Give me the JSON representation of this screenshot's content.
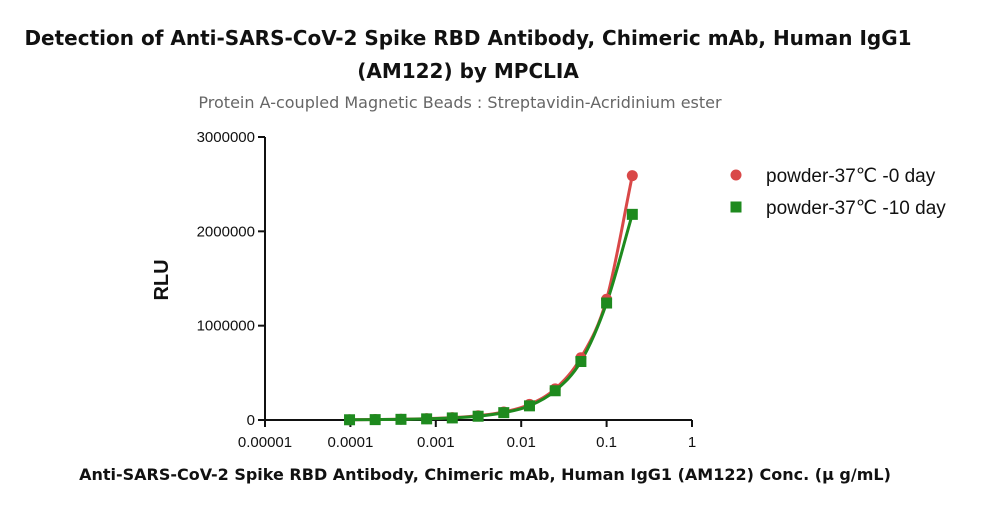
{
  "chart_data": {
    "type": "scatter",
    "title_line1": "Detection of Anti-SARS-CoV-2 Spike RBD Antibody, Chimeric mAb, Human IgG1",
    "title_line2": "(AM122) by MPCLIA",
    "subtitle": "Protein A-coupled Magnetic Beads : Streptavidin-Acridinium ester",
    "xlabel": "Anti-SARS-CoV-2 Spike RBD Antibody, Chimeric mAb, Human IgG1 (AM122) Conc. (μ g/mL)",
    "ylabel": "RLU",
    "xscale": "log",
    "xlim": [
      1e-05,
      1
    ],
    "ylim": [
      0,
      3000000
    ],
    "x_ticks": [
      "0.00001",
      "0.0001",
      "0.001",
      "0.01",
      "0.1",
      "1"
    ],
    "y_ticks": [
      "0",
      "1000000",
      "2000000",
      "3000000"
    ],
    "legend_position": "top-right",
    "series": [
      {
        "name": "powder-37℃ -0 day",
        "marker": "circle",
        "color": "#d94848",
        "x": [
          9.77e-05,
          0.000195,
          0.000391,
          0.000781,
          0.00156,
          0.00313,
          0.00625,
          0.0125,
          0.025,
          0.05,
          0.1,
          0.2
        ],
        "y": [
          3000,
          5000,
          8000,
          14000,
          25000,
          45000,
          85000,
          165000,
          330000,
          660000,
          1280000,
          2590000
        ]
      },
      {
        "name": "powder-37℃ -10 day",
        "marker": "square",
        "color": "#1e8a1e",
        "x": [
          9.77e-05,
          0.000195,
          0.000391,
          0.000781,
          0.00156,
          0.00313,
          0.00625,
          0.0125,
          0.025,
          0.05,
          0.1,
          0.2
        ],
        "y": [
          2500,
          4000,
          7000,
          12000,
          22000,
          40000,
          78000,
          150000,
          310000,
          620000,
          1240000,
          2180000
        ]
      }
    ]
  }
}
